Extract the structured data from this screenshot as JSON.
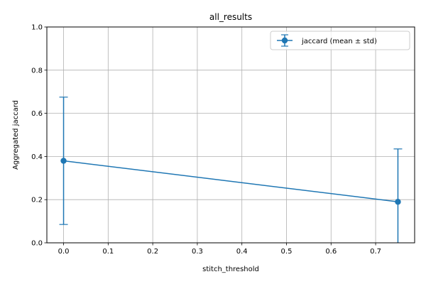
{
  "chart_data": {
    "type": "line",
    "title": "all_results",
    "xlabel": "stitch_threshold",
    "ylabel": "Aggregated jaccard",
    "xlim": [
      -0.0375,
      0.7875
    ],
    "ylim": [
      0.0,
      1.0
    ],
    "xticks": [
      0.0,
      0.1,
      0.2,
      0.3,
      0.4,
      0.5,
      0.6,
      0.7
    ],
    "xtick_labels": [
      "0.0",
      "0.1",
      "0.2",
      "0.3",
      "0.4",
      "0.5",
      "0.6",
      "0.7"
    ],
    "yticks": [
      0.0,
      0.2,
      0.4,
      0.6,
      0.8,
      1.0
    ],
    "ytick_labels": [
      "0.0",
      "0.2",
      "0.4",
      "0.6",
      "0.8",
      "1.0"
    ],
    "grid": true,
    "legend_position": "top-right",
    "series": [
      {
        "name": "jaccard (mean ± std)",
        "color": "#1f77b4",
        "marker": "circle",
        "x": [
          0.0,
          0.75
        ],
        "y": [
          0.38,
          0.19
        ],
        "yerr": [
          0.295,
          0.245
        ]
      }
    ]
  }
}
